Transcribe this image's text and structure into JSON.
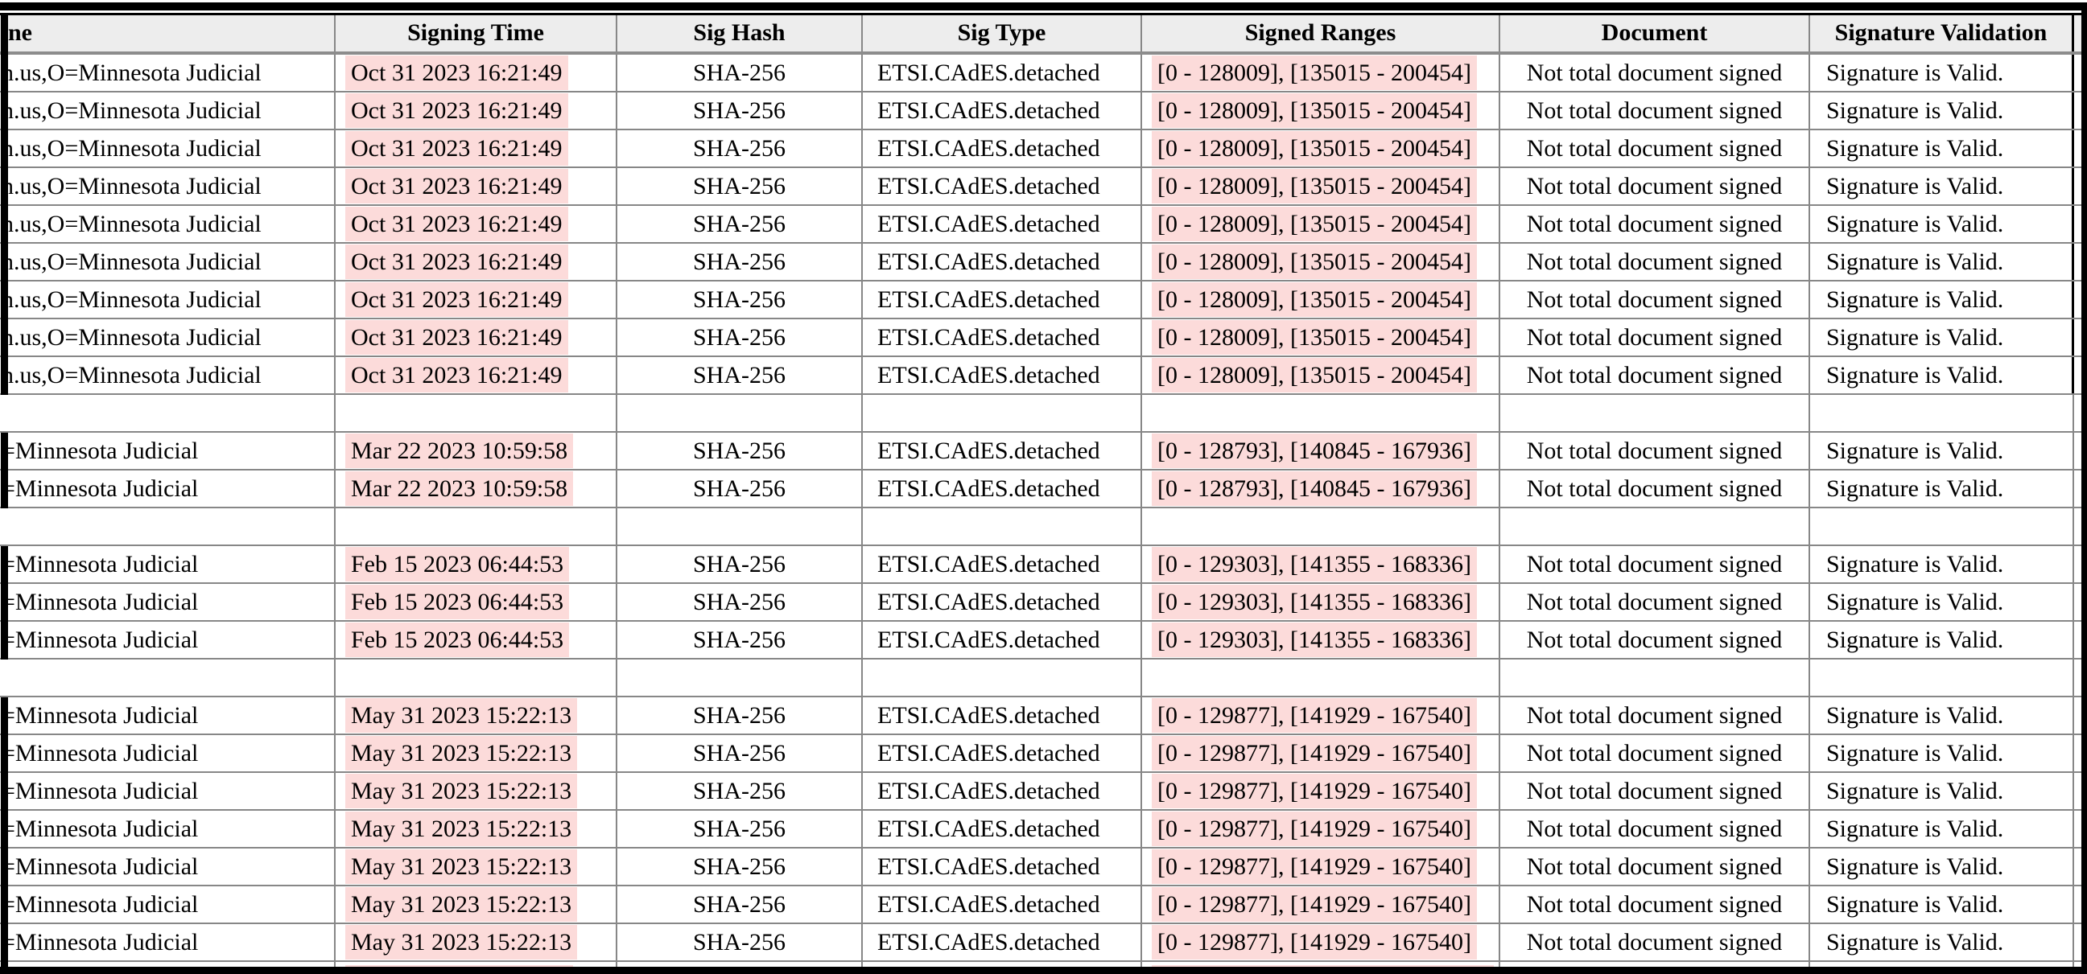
{
  "report": {
    "header": {
      "name": "ne",
      "signing_time": "Signing Time",
      "sig_hash": "Sig Hash",
      "sig_type": "Sig Type",
      "signed_ranges": "Signed Ranges",
      "document": "Document",
      "signature_validation": "Signature Validation"
    },
    "groups": [
      {
        "row_count": 9,
        "name": "n.us,O=Minnesota Judicial",
        "signing_time": "Oct 31 2023 16:21:49",
        "sig_hash": "SHA-256",
        "sig_type": "ETSI.CAdES.detached",
        "signed_ranges": "[0 - 128009], [135015 - 200454]",
        "document": "Not total document signed",
        "signature_validation": "Signature is Valid."
      },
      {
        "row_count": 2,
        "name": "=Minnesota Judicial",
        "signing_time": "Mar 22 2023 10:59:58",
        "sig_hash": "SHA-256",
        "sig_type": "ETSI.CAdES.detached",
        "signed_ranges": "[0 - 128793], [140845 - 167936]",
        "document": "Not total document signed",
        "signature_validation": "Signature is Valid."
      },
      {
        "row_count": 3,
        "name": "=Minnesota Judicial",
        "signing_time": "Feb 15 2023 06:44:53",
        "sig_hash": "SHA-256",
        "sig_type": "ETSI.CAdES.detached",
        "signed_ranges": "[0 - 129303], [141355 - 168336]",
        "document": "Not total document signed",
        "signature_validation": "Signature is Valid."
      },
      {
        "row_count": 7,
        "name": "=Minnesota Judicial",
        "signing_time": "May 31 2023 15:22:13",
        "sig_hash": "SHA-256",
        "sig_type": "ETSI.CAdES.detached",
        "signed_ranges": "[0 - 129877], [141929 - 167540]",
        "document": "Not total document signed",
        "signature_validation": "Signature is Valid."
      }
    ],
    "colors": {
      "highlight": "#fcdbda",
      "header_bg": "#ededed",
      "grid_line": "#878787",
      "frame": "#000000"
    }
  }
}
